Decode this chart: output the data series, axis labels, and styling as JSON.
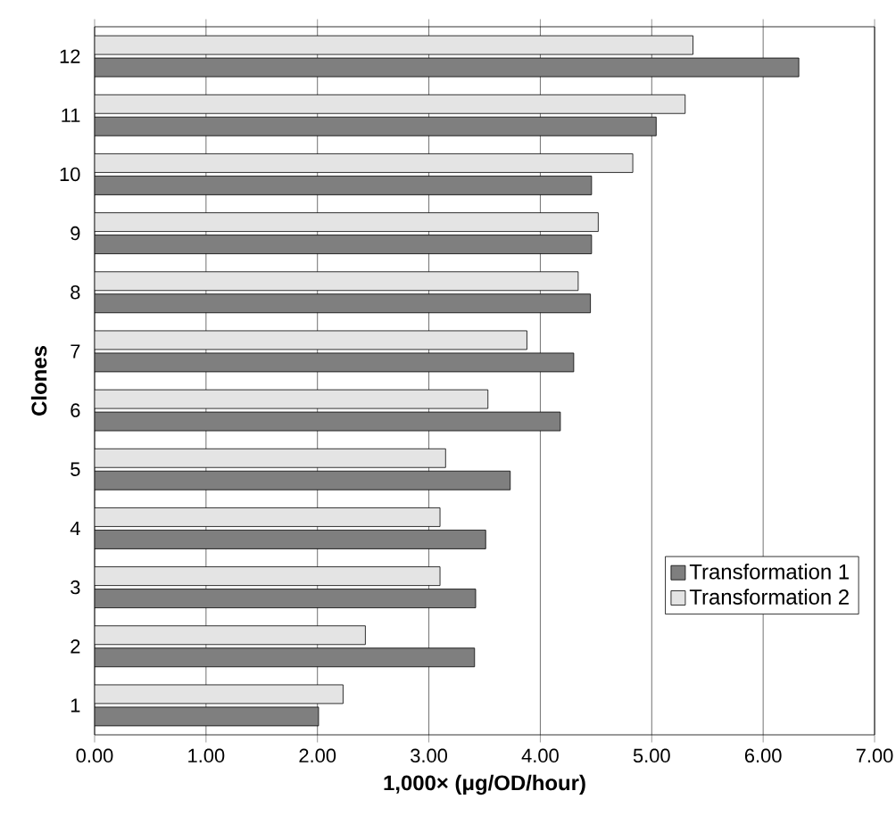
{
  "chart_data": {
    "type": "bar",
    "orientation": "horizontal",
    "categories": [
      "12",
      "11",
      "10",
      "9",
      "8",
      "7",
      "6",
      "5",
      "4",
      "3",
      "2",
      "1"
    ],
    "series": [
      {
        "name": "Transformation 1",
        "color": "#7f7f7f",
        "values": [
          6.32,
          5.04,
          4.46,
          4.46,
          4.45,
          4.3,
          4.18,
          3.73,
          3.51,
          3.42,
          3.41,
          2.01
        ]
      },
      {
        "name": "Transformation 2",
        "color": "#e4e4e4",
        "values": [
          5.37,
          5.3,
          4.83,
          4.52,
          4.34,
          3.88,
          3.53,
          3.15,
          3.1,
          3.1,
          2.43,
          2.23
        ]
      }
    ],
    "xlim": [
      0,
      7
    ],
    "xticks": [
      {
        "value": 0,
        "label": "0.00"
      },
      {
        "value": 1,
        "label": "1.00"
      },
      {
        "value": 2,
        "label": "2.00"
      },
      {
        "value": 3,
        "label": "3.00"
      },
      {
        "value": 4,
        "label": "4.00"
      },
      {
        "value": 5,
        "label": "5.00"
      },
      {
        "value": 6,
        "label": "6.00"
      },
      {
        "value": 7,
        "label": "7.00"
      }
    ],
    "xlabel": "1,000× (μg/OD/hour)",
    "ylabel": "Clones",
    "grid": "x",
    "legend": "bottom right"
  }
}
